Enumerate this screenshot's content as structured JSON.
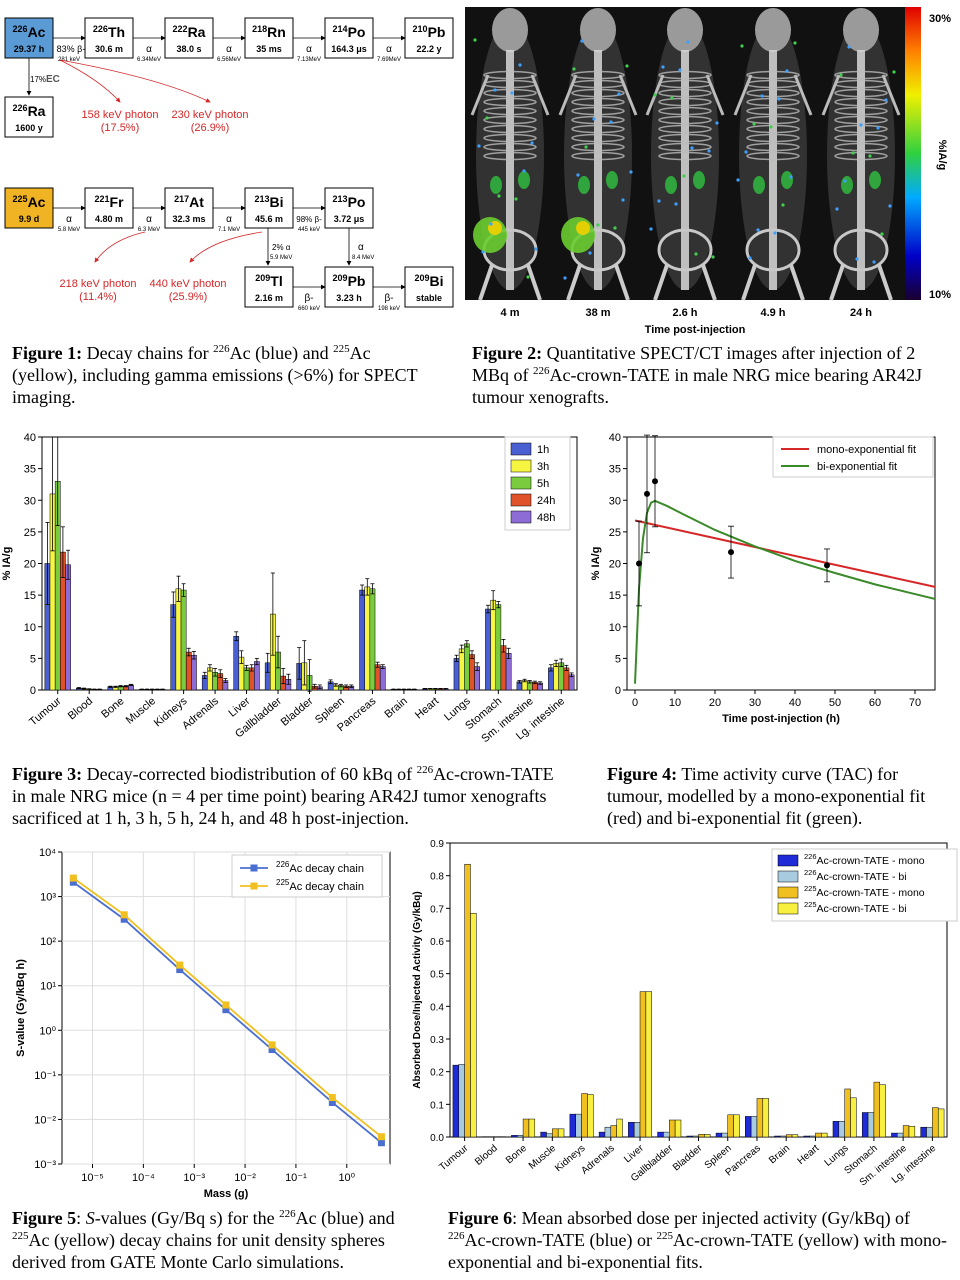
{
  "fig1": {
    "chain226": [
      {
        "mass": "226",
        "sym": "Ac",
        "hl": "29.37 h",
        "color": "#5b9bd5"
      },
      {
        "mass": "226",
        "sym": "Th",
        "hl": "30.6 m"
      },
      {
        "mass": "222",
        "sym": "Ra",
        "hl": "38.0 s"
      },
      {
        "mass": "218",
        "sym": "Rn",
        "hl": "35 ms"
      },
      {
        "mass": "214",
        "sym": "Po",
        "hl": "164.3 μs"
      },
      {
        "mass": "210",
        "sym": "Pb",
        "hl": "22.2 y"
      }
    ],
    "chain226_arrows": [
      {
        "pct": "83%",
        "mode": "β-",
        "energy": "281 keV"
      },
      {
        "pct": "",
        "mode": "α",
        "energy": "6.34MeV"
      },
      {
        "pct": "",
        "mode": "α",
        "energy": "6.56MeV"
      },
      {
        "pct": "",
        "mode": "α",
        "energy": "7.13MeV"
      },
      {
        "pct": "",
        "mode": "α",
        "energy": "7.69MeV"
      }
    ],
    "ra226": {
      "mass": "226",
      "sym": "Ra",
      "hl": "1600 y"
    },
    "ec": {
      "pct": "17%",
      "mode": "EC"
    },
    "photons226": [
      {
        "line1": "158 keV photon",
        "line2": "(17.5%)"
      },
      {
        "line1": "230 keV photon",
        "line2": "(26.9%)"
      }
    ],
    "chain225": [
      {
        "mass": "225",
        "sym": "Ac",
        "hl": "9.9 d",
        "color": "#f0b323"
      },
      {
        "mass": "221",
        "sym": "Fr",
        "hl": "4.80 m"
      },
      {
        "mass": "217",
        "sym": "At",
        "hl": "32.3 ms"
      },
      {
        "mass": "213",
        "sym": "Bi",
        "hl": "45.6 m"
      },
      {
        "mass": "213",
        "sym": "Po",
        "hl": "3.72 μs"
      }
    ],
    "chain225_arrows": [
      {
        "mode": "α",
        "energy": "5.8 MeV"
      },
      {
        "mode": "α",
        "energy": "6.3 MeV"
      },
      {
        "mode": "α",
        "energy": "7.1 MeV"
      },
      {
        "pct": "98%",
        "mode": "β-",
        "energy": "445 keV"
      }
    ],
    "chain225_bottom": [
      {
        "mass": "209",
        "sym": "Tl",
        "hl": "2.16 m"
      },
      {
        "mass": "209",
        "sym": "Pb",
        "hl": "3.23 h"
      },
      {
        "mass": "209",
        "sym": "Bi",
        "hl": "stable"
      }
    ],
    "bi_branch": {
      "pct": "2%",
      "mode": "α",
      "energy": "5.9 MeV"
    },
    "po_branch": {
      "mode": "α",
      "energy": "8.4 MeV"
    },
    "bottom_arrows": [
      {
        "mode": "β-",
        "energy": "660 keV"
      },
      {
        "mode": "β-",
        "energy": "198 keV"
      }
    ],
    "photons225": [
      {
        "line1": "218 keV photon",
        "line2": "(11.4%)"
      },
      {
        "line1": "440 keV photon",
        "line2": "(25.9%)"
      }
    ]
  },
  "fig2": {
    "times": [
      "4 m",
      "38 m",
      "2.6 h",
      "4.9 h",
      "24 h"
    ],
    "xlabel": "Time post-injection",
    "cbar_top": "30%",
    "cbar_bottom": "10%",
    "cbar_label": "%IA/g"
  },
  "captions": {
    "fig1": {
      "label": "Figure 1:",
      "t1": " Decay chains for ",
      "s1": "226",
      "t2": "Ac (blue) and ",
      "s2": "225",
      "t3": "Ac (yellow), including gamma emissions (>6%) for SPECT imaging."
    },
    "fig2": {
      "label": "Figure 2:",
      "t1": " Quantitative SPECT/CT images after injection of 2 MBq of ",
      "s1": "226",
      "t2": "Ac-crown-TATE in male NRG mice bearing AR42J tumour xenografts."
    },
    "fig3": {
      "label": "Figure 3:",
      "t1": " Decay-corrected biodistribution of 60 kBq of ",
      "s1": "226",
      "t2": "Ac-crown-TATE in male NRG mice (n = 4 per time point) bearing AR42J tumor xenografts sacrificed at 1 h, 3 h, 5 h, 24 h, and 48 h post-injection."
    },
    "fig4": {
      "label": "Figure 4:",
      "t1": " Time activity curve (TAC) for tumour, modelled by a mono-exponential fit (red) and bi-exponential fit (green)."
    },
    "fig5": {
      "label": "Figure 5",
      "t0": ": ",
      "it": "S",
      "t1": "-values (Gy/Bq s) for the ",
      "s1": "226",
      "t2": "Ac (blue) and ",
      "s2": "225",
      "t3": "Ac (yellow) decay chains for unit density spheres derived from GATE Monte Carlo simulations."
    },
    "fig6": {
      "label": "Figure 6",
      "t1": ": Mean absorbed dose per injected activity (Gy/kBq) of ",
      "s1": "226",
      "t2": "Ac-crown-TATE (blue) or ",
      "s2": "225",
      "t3": "Ac-crown-TATE (yellow) with mono-exponential and bi-exponential fits."
    }
  },
  "chart_data": [
    {
      "id": "fig3",
      "type": "bar",
      "ylabel": "% IA/g",
      "ylim": [
        0,
        40
      ],
      "yticks": [
        0,
        5,
        10,
        15,
        20,
        25,
        30,
        35,
        40
      ],
      "categories": [
        "Tumour",
        "Blood",
        "Bone",
        "Muscle",
        "Kidneys",
        "Adrenals",
        "Liver",
        "Gallbladder",
        "Bladder",
        "Spleen",
        "Pancreas",
        "Brain",
        "Heart",
        "Lungs",
        "Stomach",
        "Sm. intestine",
        "Lg. intestine"
      ],
      "legend_position": "top-right",
      "series": [
        {
          "name": "1h",
          "color": "#4a5fd1",
          "values": [
            20,
            0.3,
            0.5,
            0.1,
            13.5,
            2.3,
            8.5,
            4.3,
            4.2,
            1.3,
            15.8,
            0.1,
            0.2,
            5,
            12.8,
            1.3,
            3.5
          ],
          "errors": [
            6.5,
            0.1,
            0.1,
            0.05,
            2,
            0.5,
            0.7,
            1.5,
            2.5,
            0.3,
            0.8,
            0.05,
            0.05,
            0.5,
            0.6,
            0.2,
            0.5
          ]
        },
        {
          "name": "3h",
          "color": "#f5f542",
          "values": [
            31,
            0.2,
            0.5,
            0.1,
            16,
            3.5,
            5.2,
            12,
            4.3,
            0.8,
            16.3,
            0.1,
            0.2,
            6.5,
            14.2,
            1.5,
            4.2
          ],
          "errors": [
            9,
            0.1,
            0.1,
            0.05,
            2,
            0.5,
            1,
            6.5,
            3.5,
            0.2,
            1.3,
            0.05,
            0.05,
            0.6,
            1.5,
            0.2,
            0.5
          ]
        },
        {
          "name": "5h",
          "color": "#7acc3e",
          "values": [
            33,
            0.15,
            0.6,
            0.1,
            15.8,
            2.8,
            3.5,
            6,
            2.3,
            0.7,
            16,
            0.1,
            0.2,
            7.3,
            13.5,
            1.3,
            4.3
          ],
          "errors": [
            7,
            0.05,
            0.1,
            0.05,
            1,
            0.6,
            0.4,
            2.5,
            2.5,
            0.2,
            0.8,
            0.05,
            0.05,
            0.5,
            0.5,
            0.2,
            0.6
          ]
        },
        {
          "name": "24h",
          "color": "#e0522a",
          "values": [
            21.8,
            0.1,
            0.6,
            0.1,
            6,
            2.6,
            3.5,
            2.2,
            0.6,
            0.6,
            4,
            0.1,
            0.2,
            5.6,
            7,
            1.2,
            3.5
          ],
          "errors": [
            4,
            0.05,
            0.1,
            0.05,
            0.6,
            0.6,
            0.5,
            1.2,
            0.3,
            0.2,
            0.4,
            0.05,
            0.05,
            0.6,
            1,
            0.2,
            0.4
          ]
        },
        {
          "name": "48h",
          "color": "#8e6cd6",
          "values": [
            19.8,
            0.1,
            0.8,
            0.1,
            5.5,
            1.5,
            4.5,
            1.7,
            0.5,
            0.6,
            3.7,
            0.1,
            0.2,
            3.7,
            5.8,
            1.1,
            2.4
          ],
          "errors": [
            2.3,
            0.05,
            0.1,
            0.05,
            0.6,
            0.3,
            0.5,
            0.8,
            0.3,
            0.2,
            0.3,
            0.05,
            0.05,
            0.6,
            0.8,
            0.2,
            0.3
          ]
        }
      ]
    },
    {
      "id": "fig4",
      "type": "line",
      "xlabel": "Time post-injection (h)",
      "ylabel": "% IA/g",
      "xlim": [
        -2,
        75
      ],
      "ylim": [
        0,
        40
      ],
      "xticks": [
        0,
        10,
        20,
        30,
        40,
        50,
        60,
        70
      ],
      "yticks": [
        0,
        5,
        10,
        15,
        20,
        25,
        30,
        35,
        40
      ],
      "legend_position": "top-right",
      "points": {
        "x": [
          1,
          3,
          5,
          24,
          48
        ],
        "y": [
          20,
          31,
          33,
          21.8,
          19.7
        ],
        "err": [
          6.7,
          9.3,
          7.2,
          4.1,
          2.6
        ]
      },
      "series": [
        {
          "name": "mono-exponential fit",
          "color": "#d62728",
          "x": [
            0,
            75
          ],
          "y": [
            26.8,
            16.3
          ]
        },
        {
          "name": "bi-exponential fit",
          "color": "#3a8a2a",
          "x": [
            0,
            1,
            2,
            3,
            4,
            5,
            8,
            12,
            20,
            30,
            40,
            50,
            60,
            75
          ],
          "y": [
            1,
            16,
            24,
            28,
            29.6,
            29.9,
            29.1,
            27.8,
            25.3,
            22.7,
            20.4,
            18.5,
            16.7,
            14.4
          ]
        }
      ]
    },
    {
      "id": "fig5",
      "type": "line",
      "xlabel": "Mass (g)",
      "ylabel": "S-value (Gy/kBq h)",
      "xscale": "log",
      "yscale": "log",
      "xticks": [
        "10⁻⁵",
        "10⁻⁴",
        "10⁻³",
        "10⁻²",
        "10⁻¹",
        "10⁰"
      ],
      "yticks": [
        "10⁻³",
        "10⁻²",
        "10⁻¹",
        "10⁰",
        "10¹",
        "10²",
        "10³",
        "10⁴"
      ],
      "legend_position": "top-right",
      "series": [
        {
          "name_prefix": "226",
          "name": "Ac decay chain",
          "color": "#4a6fd1",
          "x": [
            4.2e-06,
            4.2e-05,
            0.00052,
            0.0042,
            0.034,
            0.52,
            4.8
          ],
          "y": [
            2100,
            310,
            23,
            2.9,
            0.37,
            0.024,
            0.003
          ]
        },
        {
          "name_prefix": "225",
          "name": "Ac decay chain",
          "color": "#f0c020",
          "x": [
            4.2e-06,
            4.2e-05,
            0.00052,
            0.0042,
            0.034,
            0.52,
            4.8
          ],
          "y": [
            2600,
            390,
            29,
            3.7,
            0.47,
            0.031,
            0.0041
          ]
        }
      ]
    },
    {
      "id": "fig6",
      "type": "bar",
      "ylabel": "Absorbed Dose/Injected Activity (Gy/kBq)",
      "ylim": [
        0,
        0.9
      ],
      "yticks": [
        "0.0",
        "0.1",
        "0.2",
        "0.3",
        "0.4",
        "0.5",
        "0.6",
        "0.7",
        "0.8",
        "0.9"
      ],
      "categories": [
        "Tumour",
        "Blood",
        "Bone",
        "Muscle",
        "Kidneys",
        "Adrenals",
        "Liver",
        "Gallbladder",
        "Bladder",
        "Spleen",
        "Pancreas",
        "Brain",
        "Heart",
        "Lungs",
        "Stomach",
        "Sm. intestine",
        "Lg. intestine"
      ],
      "legend_position": "top-right",
      "series": [
        {
          "name_prefix": "226",
          "name": "Ac-crown-TATE - mono",
          "color": "#1f2bd6",
          "values": [
            0.22,
            0.001,
            0.005,
            0.015,
            0.07,
            0.015,
            0.045,
            0.015,
            0.003,
            0.012,
            0.063,
            0.003,
            0.003,
            0.048,
            0.075,
            0.012,
            0.03
          ]
        },
        {
          "name_prefix": "226",
          "name": "Ac-crown-TATE - bi",
          "color": "#a8cbe0",
          "values": [
            0.222,
            0.001,
            0.005,
            0.01,
            0.07,
            0.03,
            0.045,
            0.015,
            0.003,
            0.012,
            0.063,
            0.003,
            0.003,
            0.048,
            0.075,
            0.012,
            0.03
          ]
        },
        {
          "name_prefix": "225",
          "name": "Ac-crown-TATE - mono",
          "color": "#f0c020",
          "values": [
            0.835,
            0.001,
            0.055,
            0.025,
            0.133,
            0.035,
            0.445,
            0.052,
            0.008,
            0.068,
            0.118,
            0.007,
            0.012,
            0.147,
            0.168,
            0.035,
            0.09
          ]
        },
        {
          "name_prefix": "225",
          "name": "Ac-crown-TATE - bi",
          "color": "#f8f040",
          "values": [
            0.685,
            0.001,
            0.055,
            0.025,
            0.13,
            0.055,
            0.445,
            0.052,
            0.008,
            0.068,
            0.118,
            0.007,
            0.012,
            0.12,
            0.16,
            0.033,
            0.086
          ]
        }
      ]
    }
  ]
}
